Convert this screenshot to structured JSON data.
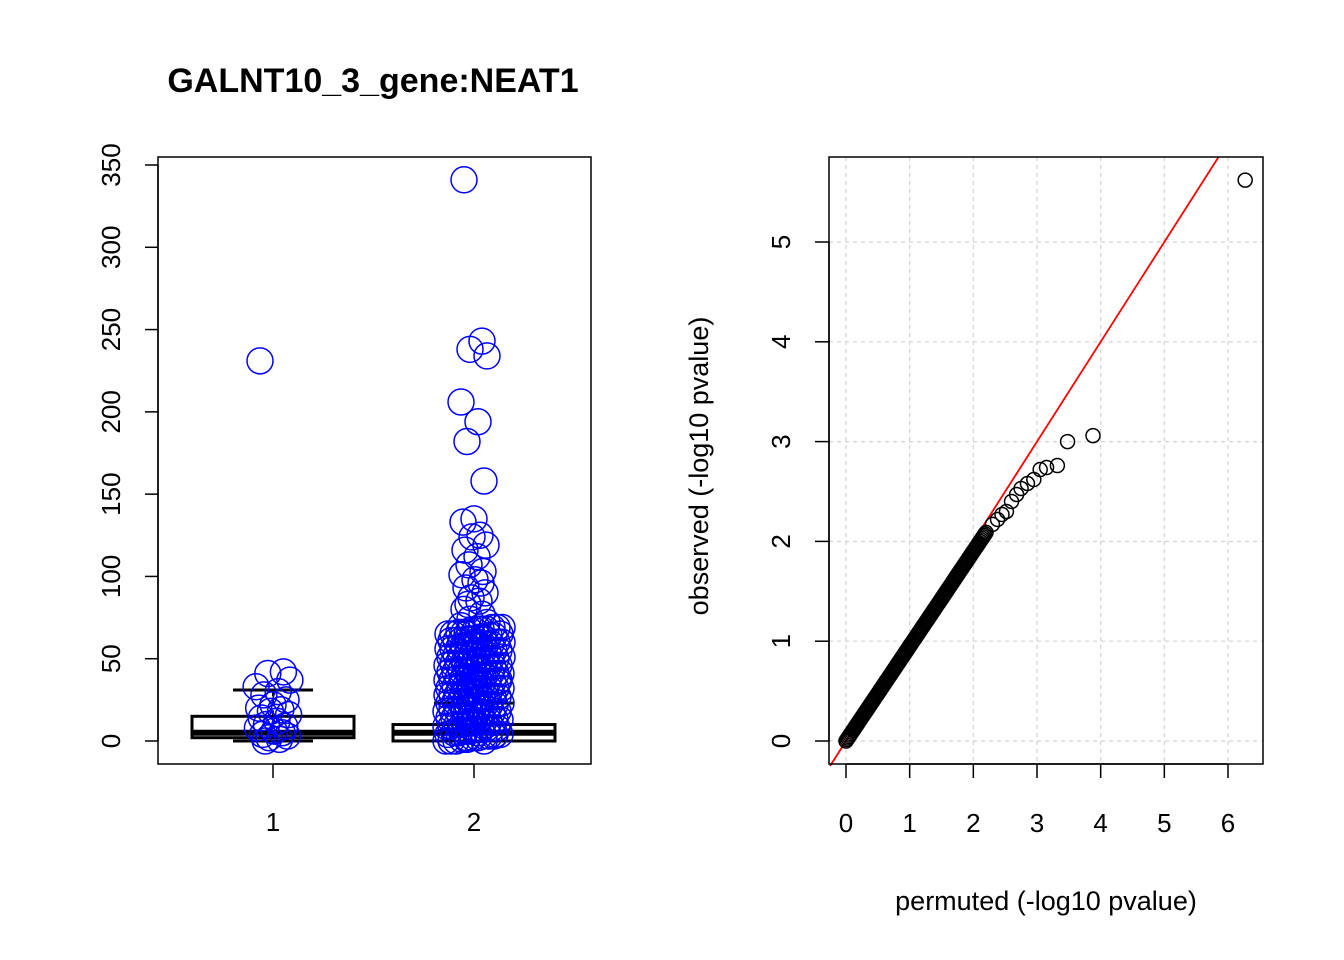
{
  "chart_data": [
    {
      "type": "box",
      "title": "GALNT10_3_gene:NEAT1",
      "xlabel": "",
      "ylabel": "",
      "categories": [
        "1",
        "2"
      ],
      "ylim": [
        0,
        350
      ],
      "yticks": [
        "0",
        "50",
        "100",
        "150",
        "200",
        "250",
        "300",
        "350"
      ],
      "boxes": [
        {
          "category": "1",
          "lower_whisker": 0,
          "q1": 2,
          "median": 5,
          "q3": 15,
          "upper_whisker": 31
        },
        {
          "category": "2",
          "lower_whisker": 0,
          "q1": 0,
          "median": 5,
          "q3": 10,
          "upper_whisker": 23
        }
      ],
      "points": [
        {
          "category": "1",
          "values": [
            231,
            42,
            41,
            37,
            33,
            30,
            28,
            25,
            22,
            20,
            19,
            18,
            16,
            14,
            12,
            10,
            9,
            8,
            6,
            5,
            4,
            3,
            2,
            1,
            0
          ]
        },
        {
          "category": "2",
          "values": [
            341,
            243,
            238,
            234,
            206,
            194,
            182,
            158,
            135,
            133,
            125,
            124,
            119,
            116,
            112,
            107,
            103,
            101,
            98,
            96,
            93,
            90,
            87,
            85,
            83,
            80,
            77,
            74,
            72,
            70,
            68,
            65,
            62,
            60,
            58,
            55,
            52,
            50,
            47,
            45,
            42,
            40,
            37,
            35,
            32,
            30,
            27,
            25,
            22,
            20,
            17,
            15,
            12,
            10,
            7,
            5,
            2,
            0
          ]
        }
      ],
      "point_color": "#0000ff",
      "box_color": "#000000"
    },
    {
      "type": "scatter",
      "title": "",
      "xlabel": "permuted (-log10 pvalue)",
      "ylabel": "observed (-log10 pvalue)",
      "xlim": [
        -0.25,
        6.3
      ],
      "ylim": [
        -0.2,
        5.85
      ],
      "xticks": [
        "0",
        "1",
        "2",
        "3",
        "4",
        "5",
        "6"
      ],
      "yticks": [
        "0",
        "1",
        "2",
        "3",
        "4",
        "5"
      ],
      "grid": true,
      "reference_line": {
        "slope": 1,
        "intercept": 0,
        "color": "#ff0000"
      },
      "point_color": "#000000",
      "dense_run": {
        "x_start": 0,
        "x_end": 2.2,
        "slope": 0.95
      },
      "outliers": [
        {
          "x": 2.3,
          "y": 2.17
        },
        {
          "x": 2.38,
          "y": 2.22
        },
        {
          "x": 2.45,
          "y": 2.27
        },
        {
          "x": 2.52,
          "y": 2.3
        },
        {
          "x": 2.6,
          "y": 2.4
        },
        {
          "x": 2.68,
          "y": 2.47
        },
        {
          "x": 2.75,
          "y": 2.53
        },
        {
          "x": 2.85,
          "y": 2.58
        },
        {
          "x": 2.95,
          "y": 2.62
        },
        {
          "x": 3.05,
          "y": 2.72
        },
        {
          "x": 3.15,
          "y": 2.74
        },
        {
          "x": 3.32,
          "y": 2.76
        },
        {
          "x": 3.48,
          "y": 3.0
        },
        {
          "x": 3.88,
          "y": 3.06
        },
        {
          "x": 6.27,
          "y": 5.62
        }
      ]
    }
  ]
}
